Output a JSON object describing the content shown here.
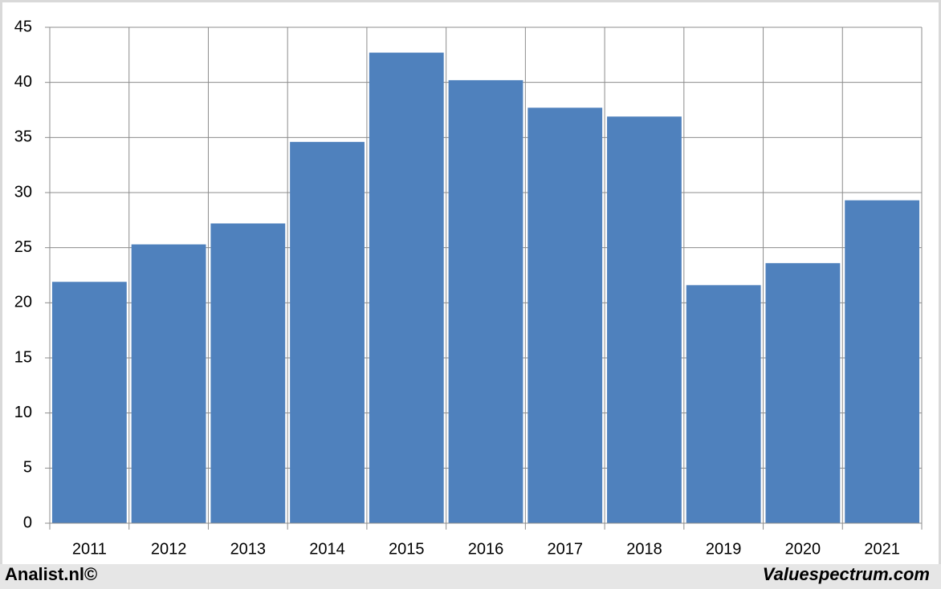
{
  "chart_data": {
    "type": "bar",
    "categories": [
      "2011",
      "2012",
      "2013",
      "2014",
      "2015",
      "2016",
      "2017",
      "2018",
      "2019",
      "2020",
      "2021"
    ],
    "values": [
      21.9,
      25.3,
      27.2,
      34.6,
      42.7,
      40.2,
      37.7,
      36.9,
      21.6,
      23.6,
      29.3
    ],
    "color": "#4f81bd",
    "ylim": [
      0,
      45
    ],
    "yticks": [
      0,
      5,
      10,
      15,
      20,
      25,
      30,
      35,
      40,
      45
    ],
    "grid": true
  },
  "footer": {
    "left": "Analist.nl©",
    "right": "Valuespectrum.com"
  }
}
